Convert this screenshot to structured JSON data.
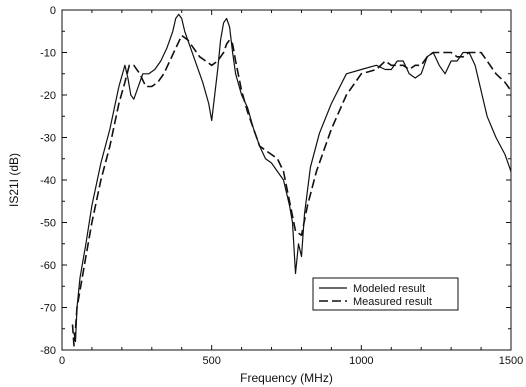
{
  "chart_data": {
    "type": "line",
    "title": "",
    "xlabel": "Frequency (MHz)",
    "ylabel": "IS21I (dB)",
    "xlim": [
      0,
      1500
    ],
    "ylim": [
      -80,
      0
    ],
    "xticks": [
      0,
      500,
      1000,
      1500
    ],
    "yticks": [
      0,
      -10,
      -20,
      -30,
      -40,
      -50,
      -60,
      -70,
      -80
    ],
    "grid": false,
    "legend": "bottom-right",
    "series": [
      {
        "name": "Modeled result",
        "style": "solid",
        "color": "#111111",
        "x": [
          40,
          45,
          50,
          60,
          80,
          100,
          130,
          160,
          190,
          210,
          220,
          230,
          240,
          250,
          270,
          290,
          310,
          330,
          350,
          370,
          380,
          390,
          400,
          410,
          430,
          450,
          470,
          490,
          500,
          510,
          520,
          530,
          540,
          550,
          560,
          570,
          580,
          600,
          620,
          640,
          660,
          680,
          700,
          720,
          740,
          760,
          770,
          780,
          790,
          800,
          810,
          830,
          860,
          900,
          950,
          1000,
          1050,
          1080,
          1100,
          1120,
          1140,
          1160,
          1180,
          1200,
          1220,
          1240,
          1260,
          1280,
          1300,
          1320,
          1340,
          1360,
          1380,
          1400,
          1420,
          1450,
          1480,
          1500
        ],
        "y": [
          -76,
          -78,
          -70,
          -63,
          -55,
          -46,
          -36,
          -28,
          -18,
          -13,
          -16,
          -20,
          -21,
          -19,
          -15,
          -15,
          -14,
          -12,
          -9,
          -5,
          -2,
          -1,
          -2,
          -5,
          -9,
          -13,
          -17,
          -22,
          -26,
          -20,
          -14,
          -7,
          -3,
          -2,
          -4,
          -10,
          -15,
          -20,
          -23,
          -28,
          -32,
          -35,
          -36,
          -38,
          -40,
          -46,
          -50,
          -62,
          -55,
          -58,
          -48,
          -37,
          -29,
          -22,
          -15,
          -14,
          -13,
          -14,
          -14,
          -12,
          -12,
          -15,
          -16,
          -15,
          -11,
          -10,
          -13,
          -15,
          -12,
          -12,
          -10,
          -10,
          -13,
          -19,
          -25,
          -30,
          -34,
          -38
        ]
      },
      {
        "name": "Measured result",
        "style": "dashed",
        "color": "#111111",
        "x": [
          35,
          40,
          45,
          50,
          60,
          80,
          100,
          130,
          160,
          190,
          210,
          225,
          240,
          260,
          280,
          300,
          320,
          340,
          360,
          380,
          400,
          420,
          440,
          460,
          480,
          500,
          520,
          540,
          550,
          560,
          570,
          580,
          600,
          620,
          640,
          660,
          680,
          700,
          720,
          740,
          760,
          780,
          800,
          820,
          850,
          900,
          950,
          1000,
          1050,
          1080,
          1100,
          1120,
          1140,
          1160,
          1180,
          1200,
          1220,
          1240,
          1260,
          1280,
          1300,
          1320,
          1340,
          1360,
          1380,
          1400,
          1420,
          1450,
          1480,
          1500
        ],
        "y": [
          -74,
          -79,
          -75,
          -70,
          -66,
          -58,
          -50,
          -40,
          -32,
          -22,
          -17,
          -13,
          -13,
          -15,
          -18,
          -18,
          -17,
          -15,
          -12,
          -9,
          -6,
          -7,
          -9,
          -11,
          -12,
          -13,
          -12,
          -10,
          -8,
          -7,
          -8,
          -12,
          -19,
          -24,
          -28,
          -32,
          -33,
          -34,
          -35,
          -38,
          -45,
          -52,
          -53,
          -46,
          -38,
          -28,
          -20,
          -15,
          -14,
          -12,
          -13,
          -13,
          -13,
          -14,
          -13,
          -13,
          -11,
          -10,
          -10,
          -10,
          -10,
          -11,
          -11,
          -10,
          -10,
          -10,
          -12,
          -15,
          -17,
          -19
        ]
      }
    ]
  }
}
